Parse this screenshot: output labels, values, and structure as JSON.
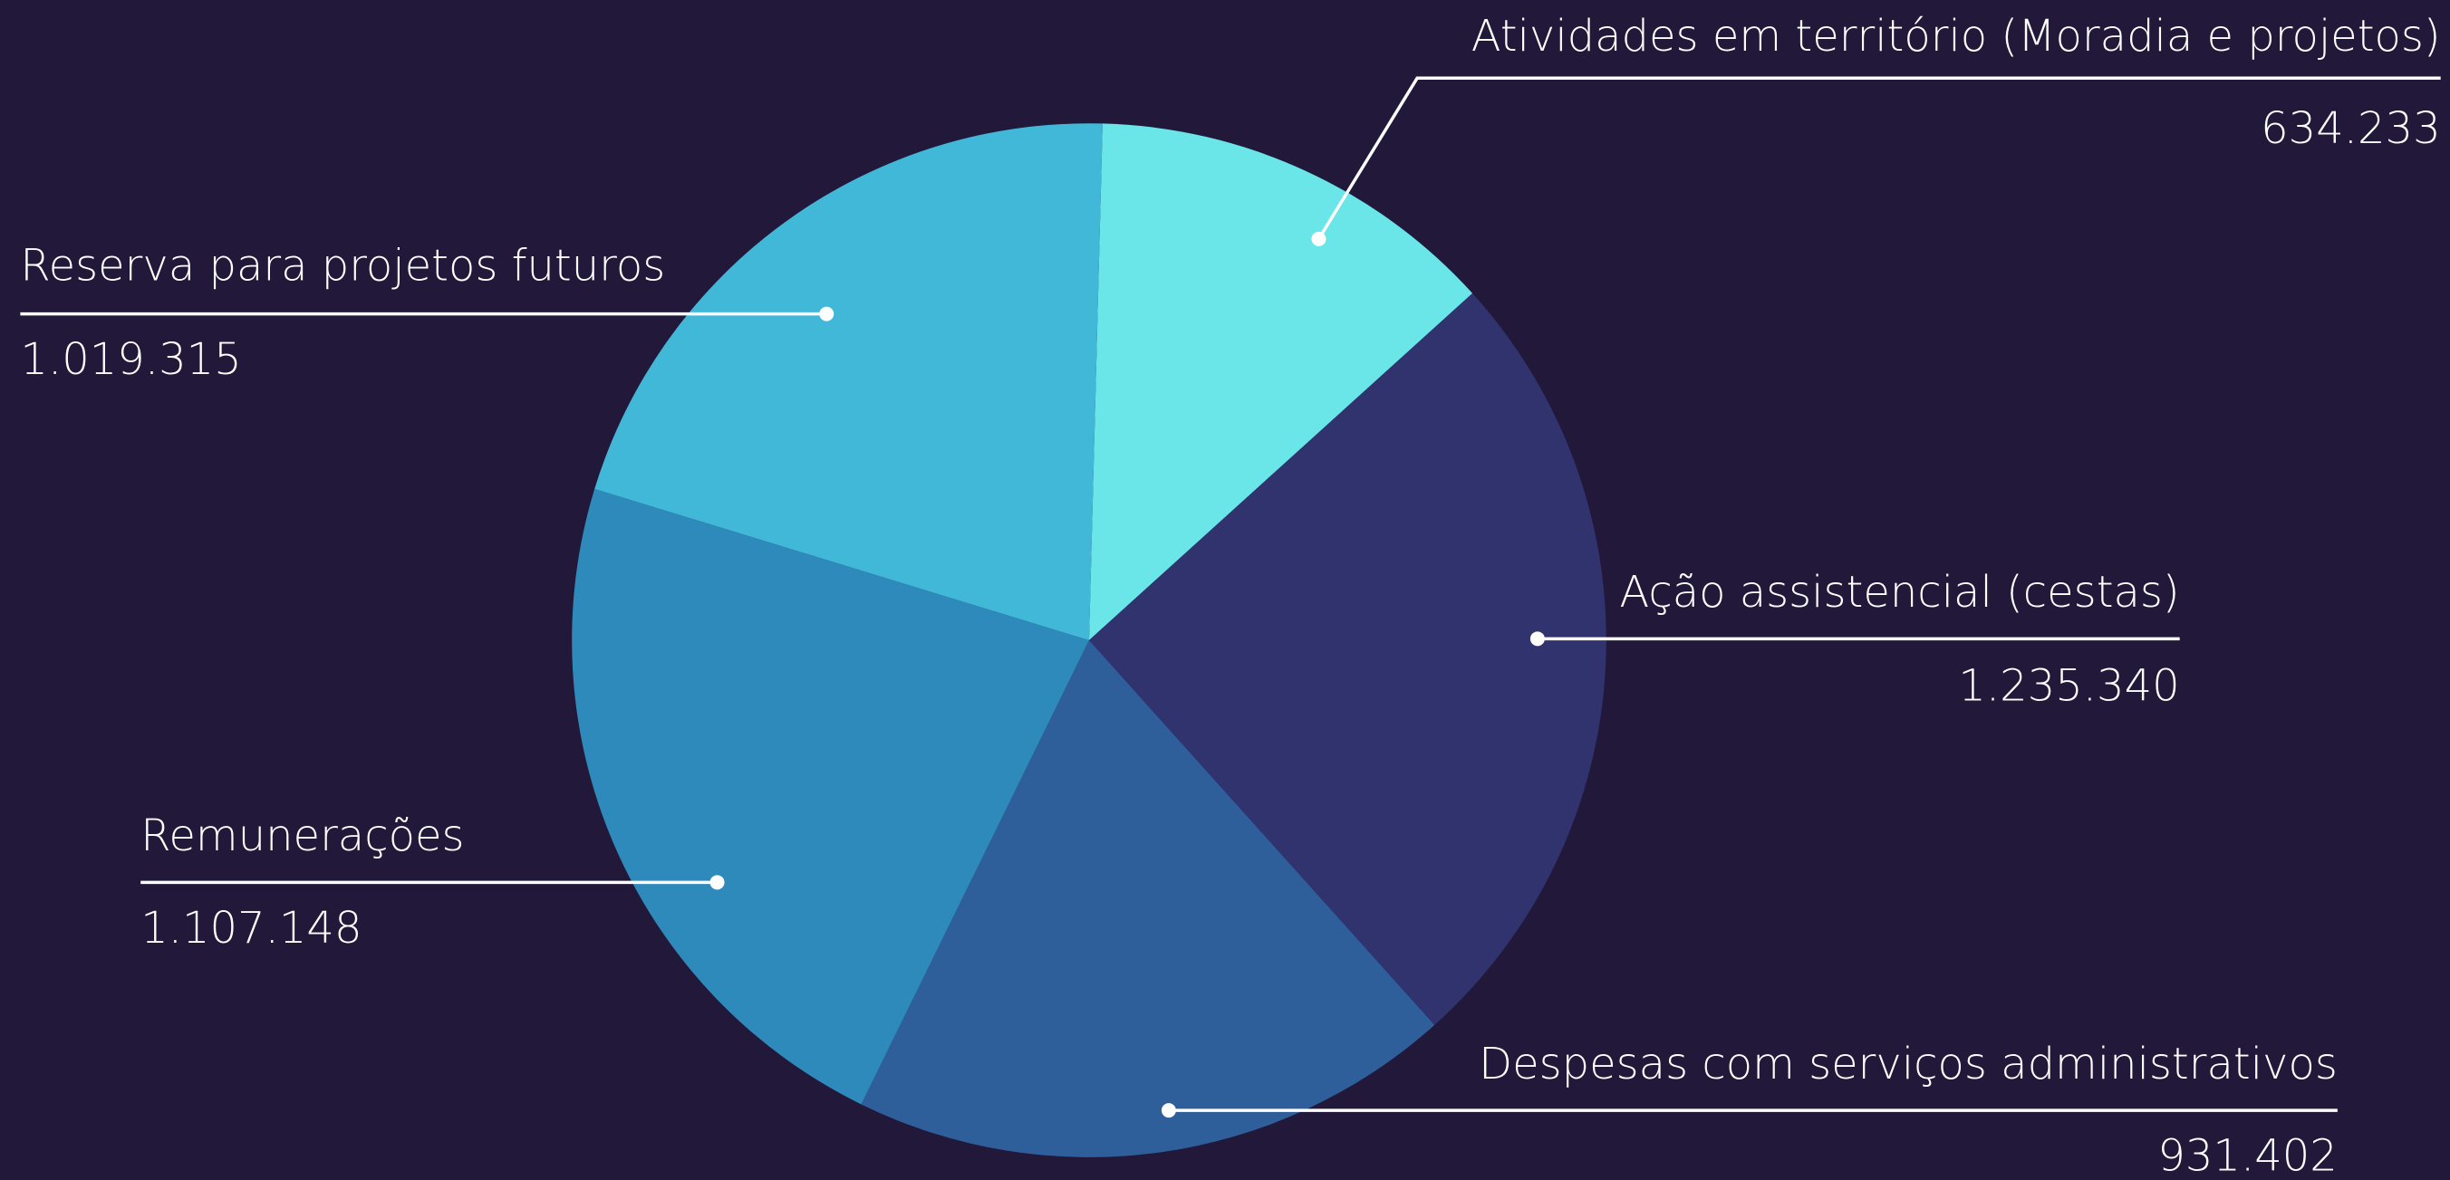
{
  "chart_data": {
    "type": "pie",
    "categories": [
      "Atividades em território (Moradia e projetos)",
      "Ação assistencial (cestas)",
      "Despesas com serviços administrativos",
      "Remunerações",
      "Reserva para projetos futuros"
    ],
    "values": [
      634233,
      1235340,
      931402,
      1107148,
      1019315
    ],
    "value_labels": [
      "634.233",
      "1.235.340",
      "931.402",
      "1.107.148",
      "1.019.315"
    ],
    "colors": [
      "#6ae5e8",
      "#30336e",
      "#2e5f9a",
      "#2d8aba",
      "#42b8d8"
    ]
  }
}
